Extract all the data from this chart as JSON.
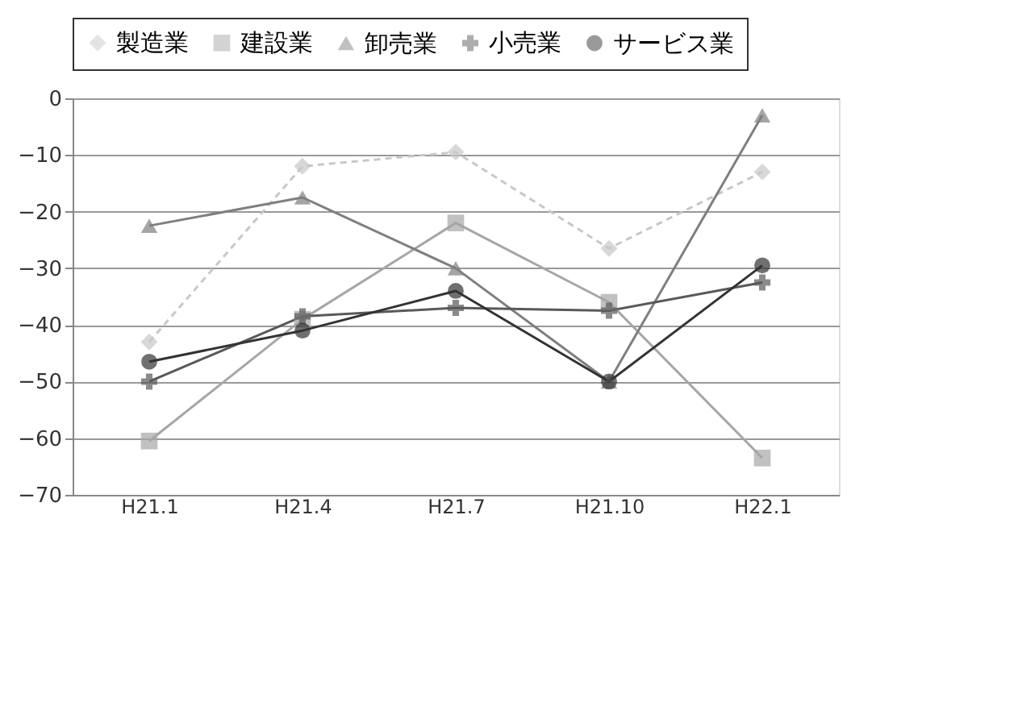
{
  "chart_data": {
    "type": "line",
    "categories": [
      "H21.1",
      "H21.4",
      "H21.7",
      "H21.10",
      "H22.1"
    ],
    "series": [
      {
        "name": "製造業",
        "color": "#c8c8c8",
        "marker": "diamond",
        "line_style": "dashed",
        "values": [
          -43,
          -12,
          -9.5,
          -26.5,
          -13
        ]
      },
      {
        "name": "建設業",
        "color": "#a6a6a6",
        "marker": "square",
        "values": [
          -60.5,
          -39,
          -22,
          -36,
          -63.5
        ]
      },
      {
        "name": "卸売業",
        "color": "#7f7f7f",
        "marker": "triangle",
        "values": [
          -22.5,
          -17.5,
          -30,
          -50,
          -3
        ]
      },
      {
        "name": "小売業",
        "color": "#595959",
        "marker": "cross",
        "values": [
          -50,
          -38.5,
          -37,
          -37.5,
          -32.5
        ]
      },
      {
        "name": "サービス業",
        "color": "#333333",
        "marker": "circle",
        "values": [
          -46.5,
          -41,
          -34,
          -50,
          -29.5
        ]
      }
    ],
    "ylim": [
      -70,
      0
    ],
    "yticks": [
      -70,
      -60,
      -50,
      -40,
      -30,
      -20,
      -10,
      0
    ],
    "grid": "y",
    "legend": "top"
  }
}
